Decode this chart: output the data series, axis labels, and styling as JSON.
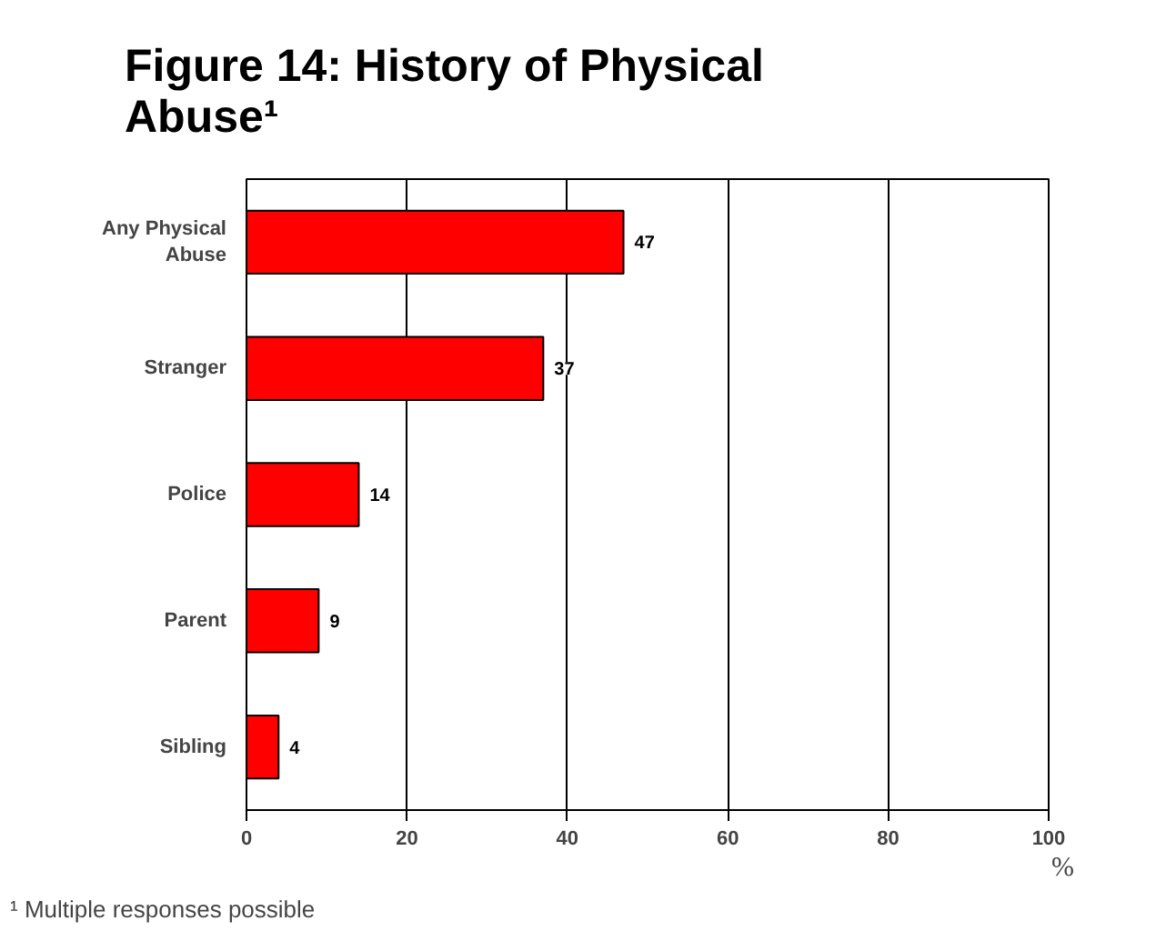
{
  "chart_data": {
    "type": "bar",
    "orientation": "horizontal",
    "title": "Figure 14: History of Physical Abuse¹",
    "xlabel": "%",
    "categories": [
      "Any Physical Abuse",
      "Stranger",
      "Police",
      "Parent",
      "Sibling"
    ],
    "values": [
      47,
      37,
      14,
      9,
      4
    ],
    "color": "#ff0000",
    "xlim": [
      0,
      100
    ],
    "xticks": [
      0,
      20,
      40,
      60,
      80,
      100
    ],
    "grid": "x",
    "data_labels": true,
    "annotations": [
      "¹ Multiple responses possible"
    ]
  }
}
